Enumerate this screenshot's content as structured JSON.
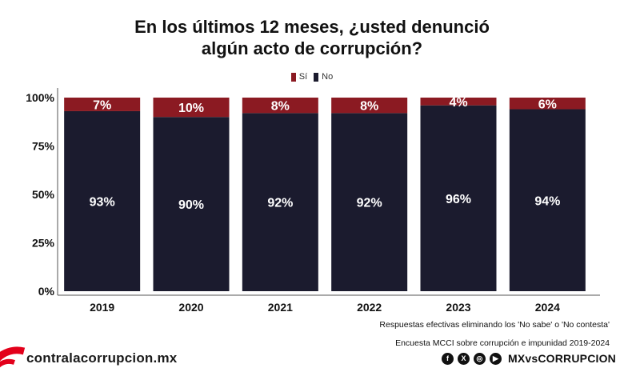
{
  "title_lines": [
    "En los últimos 12 meses, ¿usted denunció",
    "algún acto de corrupción?"
  ],
  "legend": [
    {
      "label": "Sí",
      "color": "#8b1a22"
    },
    {
      "label": "No",
      "color": "#1b1b2e"
    }
  ],
  "chart_data": {
    "type": "bar",
    "stacked": true,
    "categories": [
      "2019",
      "2020",
      "2021",
      "2022",
      "2023",
      "2024"
    ],
    "series": [
      {
        "name": "No",
        "values": [
          93,
          90,
          92,
          92,
          96,
          94
        ],
        "color": "#1b1b2e"
      },
      {
        "name": "Sí",
        "values": [
          7,
          10,
          8,
          8,
          4,
          6
        ],
        "color": "#8b1a22"
      }
    ],
    "data_labels": {
      "No": [
        "93%",
        "90%",
        "92%",
        "92%",
        "96%",
        "94%"
      ],
      "Sí": [
        "7%",
        "10%",
        "8%",
        "8%",
        "4%",
        "6%"
      ]
    },
    "y_ticks": [
      0,
      25,
      50,
      75,
      100
    ],
    "y_tick_labels": [
      "0%",
      "25%",
      "50%",
      "75%",
      "100%"
    ],
    "ylim": [
      0,
      100
    ],
    "grid": false,
    "legend_position": "top-center"
  },
  "notes": {
    "line1": "Respuestas efectivas eliminando los 'No sabe' o 'No contesta'",
    "line2": "Encuesta MCCI sobre corrupción e impunidad 2019-2024"
  },
  "footer": {
    "brand": "contralacorrupcion.mx",
    "brand_color": "#e3001b",
    "handle": "MXvsCORRUPCION",
    "social_icons": [
      "facebook-icon",
      "x-icon",
      "instagram-icon",
      "youtube-icon"
    ]
  }
}
